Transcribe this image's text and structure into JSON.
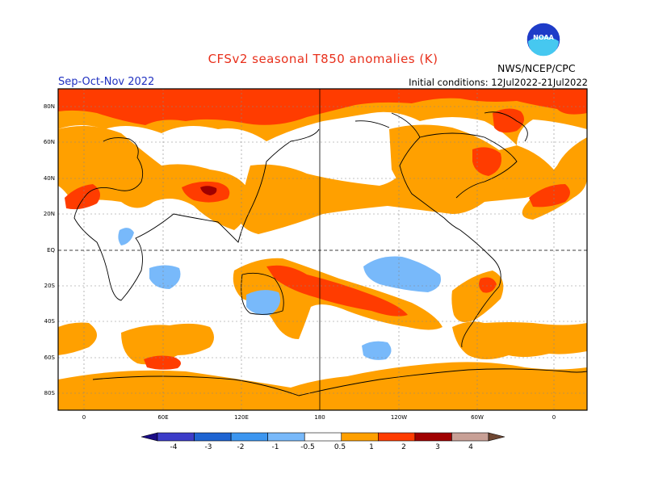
{
  "title": "CFSv2 seasonal T850 anomalies (K)",
  "season": "Sep-Oct-Nov 2022",
  "initial_conditions": "Initial conditions: 12Jul2022-21Jul2022",
  "agency": "NWS/NCEP/CPC",
  "logo": {
    "icon": "noaa-logo-icon",
    "text": "NOAA"
  },
  "map": {
    "projection": "cylindrical-equidistant",
    "lat_labels": [
      "80N",
      "60N",
      "40N",
      "20N",
      "EQ",
      "20S",
      "40S",
      "60S",
      "80S"
    ],
    "lon_labels": [
      "0",
      "60E",
      "120E",
      "180",
      "120W",
      "60W",
      "0"
    ],
    "gridlines": true,
    "dateline_solid": true,
    "equator_dashed": true
  },
  "colorbar": {
    "labels": [
      "-4",
      "-3",
      "-2",
      "-1",
      "-0.5",
      "0.5",
      "1",
      "2",
      "3",
      "4"
    ],
    "colors": [
      "#1a0c86",
      "#3c3cc8",
      "#1e64d2",
      "#3c96f0",
      "#78b9fa",
      "#ffffff",
      "#ffa000",
      "#ff3c00",
      "#a00000",
      "#c8a096",
      "#6e4632"
    ]
  },
  "anomaly_colors": {
    "light_blue": "#78b9fa",
    "orange": "#ffa000",
    "red_orange": "#ff3c00",
    "dark_red": "#a00000"
  }
}
